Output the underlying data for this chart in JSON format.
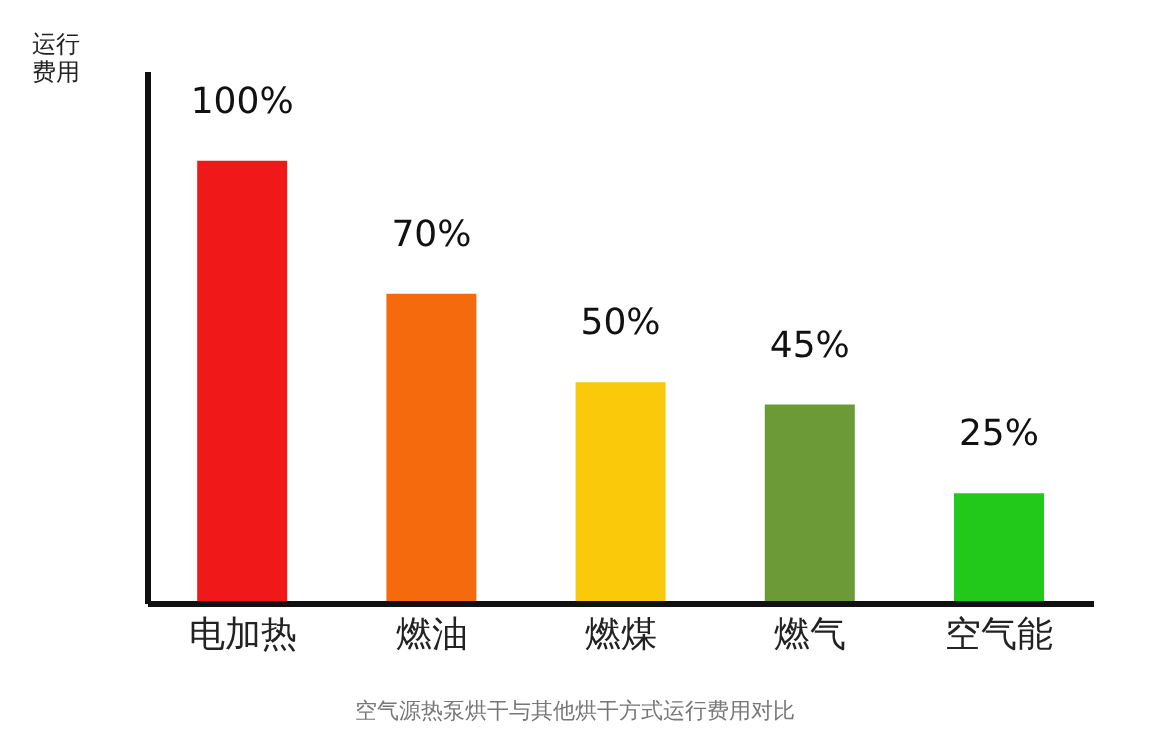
{
  "chart_data": {
    "type": "bar",
    "ylabel": "运行费用",
    "categories": [
      "电加热",
      "燃油",
      "燃煤",
      "燃气",
      "空气能"
    ],
    "values": [
      100,
      70,
      50,
      45,
      25
    ],
    "colors": [
      "#f01818",
      "#f56a0c",
      "#f9c90a",
      "#6b9a36",
      "#22c81a"
    ],
    "data_labels": true,
    "value_labels": [
      "100%",
      "70%",
      "50%",
      "45%",
      "25%"
    ],
    "annotations": [
      "空气源热泵烘干与其他烘干方式运行费用对比"
    ]
  }
}
